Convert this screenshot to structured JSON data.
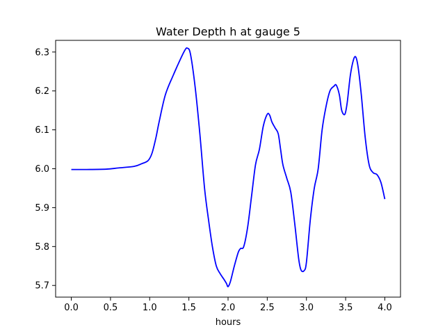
{
  "chart_data": {
    "type": "line",
    "title": "Water Depth h at gauge 5",
    "xlabel": "hours",
    "ylabel": "",
    "xlim": [
      -0.2,
      4.2
    ],
    "ylim": [
      5.67,
      6.33
    ],
    "xticks": [
      0.0,
      0.5,
      1.0,
      1.5,
      2.0,
      2.5,
      3.0,
      3.5,
      4.0
    ],
    "xtick_labels": [
      "0.0",
      "0.5",
      "1.0",
      "1.5",
      "2.0",
      "2.5",
      "3.0",
      "3.5",
      "4.0"
    ],
    "yticks": [
      5.7,
      5.8,
      5.9,
      6.0,
      6.1,
      6.2,
      6.3
    ],
    "ytick_labels": [
      "5.7",
      "5.8",
      "5.9",
      "6.0",
      "6.1",
      "6.2",
      "6.3"
    ],
    "grid": false,
    "series": [
      {
        "color": "#0000ff",
        "x": [
          0.0,
          0.2,
          0.45,
          0.6,
          0.8,
          0.9,
          0.98,
          1.03,
          1.08,
          1.12,
          1.2,
          1.3,
          1.4,
          1.45,
          1.48,
          1.52,
          1.58,
          1.64,
          1.7,
          1.75,
          1.8,
          1.85,
          1.9,
          1.95,
          1.98,
          2.0,
          2.03,
          2.08,
          2.13,
          2.16,
          2.2,
          2.25,
          2.3,
          2.35,
          2.4,
          2.45,
          2.5,
          2.53,
          2.56,
          2.6,
          2.64,
          2.67,
          2.7,
          2.75,
          2.8,
          2.85,
          2.9,
          2.93,
          2.97,
          3.0,
          3.05,
          3.1,
          3.15,
          3.2,
          3.25,
          3.3,
          3.35,
          3.38,
          3.42,
          3.45,
          3.49,
          3.52,
          3.56,
          3.6,
          3.63,
          3.66,
          3.7,
          3.75,
          3.8,
          3.85,
          3.9,
          3.95,
          4.0
        ],
        "y": [
          5.998,
          5.998,
          5.999,
          6.002,
          6.006,
          6.013,
          6.021,
          6.04,
          6.08,
          6.12,
          6.19,
          6.24,
          6.285,
          6.305,
          6.31,
          6.295,
          6.21,
          6.09,
          5.95,
          5.87,
          5.8,
          5.75,
          5.73,
          5.715,
          5.705,
          5.697,
          5.71,
          5.75,
          5.785,
          5.795,
          5.8,
          5.85,
          5.93,
          6.01,
          6.05,
          6.11,
          6.14,
          6.138,
          6.12,
          6.105,
          6.09,
          6.05,
          6.01,
          5.975,
          5.94,
          5.86,
          5.77,
          5.74,
          5.738,
          5.76,
          5.87,
          5.95,
          6.0,
          6.1,
          6.16,
          6.2,
          6.212,
          6.215,
          6.19,
          6.15,
          6.14,
          6.17,
          6.24,
          6.28,
          6.287,
          6.26,
          6.19,
          6.08,
          6.01,
          5.99,
          5.985,
          5.965,
          5.922
        ]
      }
    ]
  }
}
